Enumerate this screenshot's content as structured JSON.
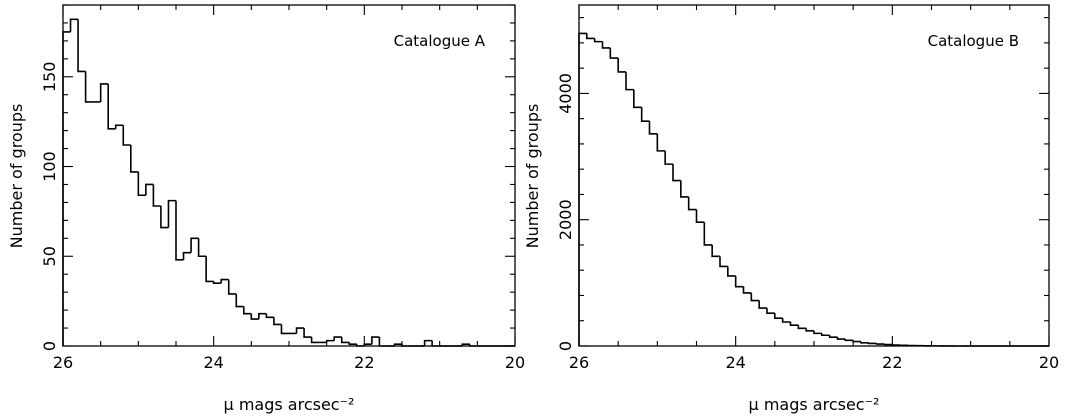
{
  "chart_data": [
    {
      "type": "histogram",
      "annotation": "Catalogue A",
      "xlabel": "μ mags arcsec⁻²",
      "ylabel": "Number of groups",
      "xlim": [
        26,
        20
      ],
      "ylim": [
        0,
        190
      ],
      "x_ticks": [
        26,
        24,
        22,
        20
      ],
      "y_ticks": [
        0,
        50,
        100,
        150
      ],
      "bin_width": 0.1,
      "bin_start": 26.0,
      "values": [
        175,
        182,
        153,
        136,
        136,
        146,
        121,
        123,
        112,
        97,
        84,
        90,
        78,
        66,
        81,
        48,
        52,
        60,
        50,
        36,
        35,
        37,
        29,
        22,
        18,
        15,
        18,
        16,
        12,
        7,
        7,
        10,
        5,
        2,
        2,
        3,
        5,
        2,
        1,
        0,
        1,
        5,
        0,
        0,
        1,
        0,
        0,
        0,
        3,
        0,
        0,
        0,
        0,
        1,
        0,
        0,
        0,
        0,
        0,
        0
      ]
    },
    {
      "type": "histogram",
      "annotation": "Catalogue B",
      "xlabel": "μ mags arcsec⁻²",
      "ylabel": "Number of groups",
      "xlim": [
        26,
        20
      ],
      "ylim": [
        0,
        5400
      ],
      "x_ticks": [
        26,
        24,
        22,
        20
      ],
      "y_ticks": [
        0,
        2000,
        4000
      ],
      "bin_width": 0.1,
      "bin_start": 26.0,
      "values": [
        4950,
        4870,
        4820,
        4720,
        4560,
        4340,
        4060,
        3780,
        3560,
        3360,
        3090,
        2880,
        2620,
        2360,
        2160,
        1960,
        1600,
        1420,
        1260,
        1110,
        940,
        840,
        720,
        600,
        520,
        440,
        380,
        330,
        280,
        240,
        200,
        170,
        140,
        110,
        90,
        70,
        50,
        40,
        30,
        22,
        16,
        11,
        8,
        5,
        3,
        2,
        1,
        1,
        0,
        0,
        0,
        0,
        0,
        0,
        0,
        0,
        0,
        0,
        0,
        0
      ]
    }
  ]
}
